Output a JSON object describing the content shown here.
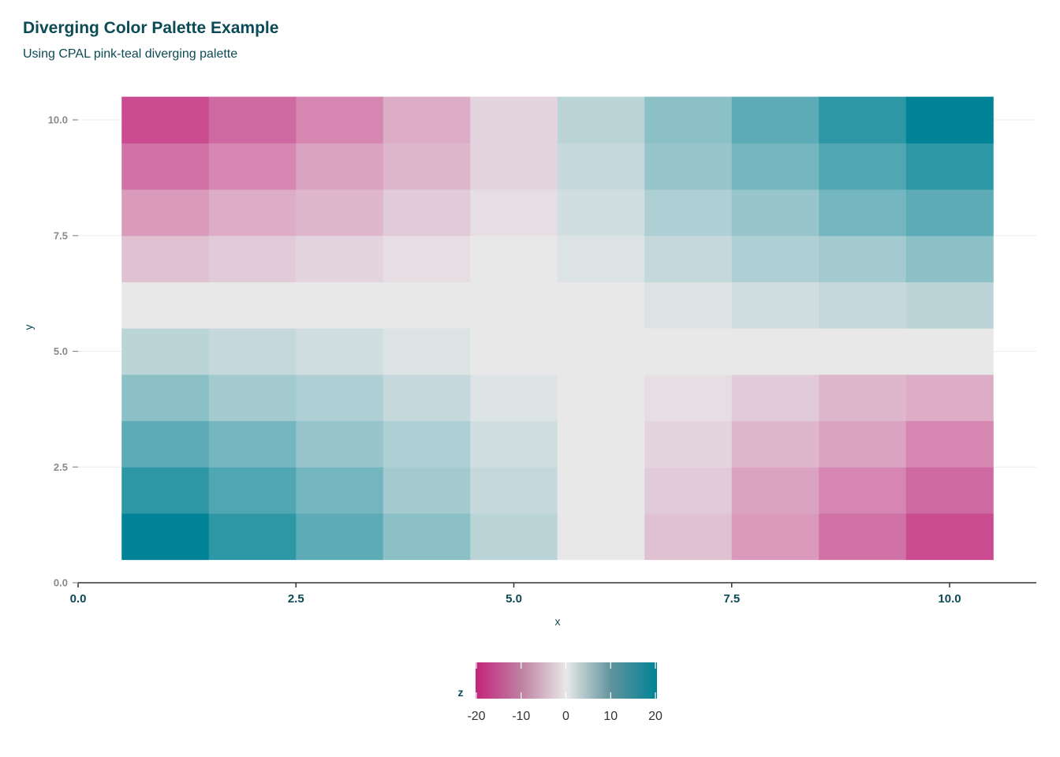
{
  "title": "Diverging Color Palette Example",
  "subtitle": "Using CPAL pink-teal diverging palette",
  "colors": {
    "low": "#c2247a",
    "mid": "#e8e8e8",
    "high": "#008396",
    "axis": "#333333",
    "text": "#0c4a56"
  },
  "chart_data": {
    "type": "heatmap",
    "xlabel": "x",
    "ylabel": "y",
    "xlim": [
      0,
      11
    ],
    "ylim": [
      0,
      10.5
    ],
    "x_ticks": [
      "0.0",
      "2.5",
      "5.0",
      "7.5",
      "10.0"
    ],
    "y_ticks": [
      "0.0",
      "2.5",
      "5.0",
      "7.5",
      "10.0"
    ],
    "x": [
      1,
      2,
      3,
      4,
      5,
      6,
      7,
      8,
      9,
      10
    ],
    "y": [
      1,
      2,
      3,
      4,
      5,
      6,
      7,
      8,
      9,
      10
    ],
    "z": [
      [
        20,
        16,
        12,
        8,
        4,
        0,
        -4,
        -8,
        -12,
        -16
      ],
      [
        16,
        13,
        10,
        6,
        3,
        0,
        -3,
        -7,
        -10,
        -13
      ],
      [
        12,
        10,
        7,
        5,
        2,
        0,
        -2,
        -5,
        -7,
        -10
      ],
      [
        8,
        6,
        5,
        3,
        1,
        0,
        -1,
        -3,
        -5,
        -6
      ],
      [
        4,
        3,
        2,
        1,
        0,
        0,
        0,
        0,
        0,
        0
      ],
      [
        0,
        0,
        0,
        0,
        0,
        0,
        1,
        2,
        3,
        4
      ],
      [
        -4,
        -3,
        -2,
        -1,
        0,
        1,
        3,
        5,
        6,
        8
      ],
      [
        -8,
        -6,
        -5,
        -3,
        -1,
        2,
        5,
        7,
        10,
        12
      ],
      [
        -12,
        -10,
        -7,
        -5,
        -2,
        3,
        7,
        10,
        13,
        16
      ],
      [
        -16,
        -13,
        -10,
        -6,
        -2,
        4,
        8,
        12,
        16,
        20
      ]
    ],
    "legend": {
      "title": "z",
      "placement": "bottom-center",
      "range": [
        -20,
        20
      ],
      "ticks": [
        -20,
        -10,
        0,
        10,
        20
      ],
      "tick_labels": [
        "-20",
        "-10",
        "0",
        "10",
        "20"
      ]
    },
    "grid": true
  }
}
